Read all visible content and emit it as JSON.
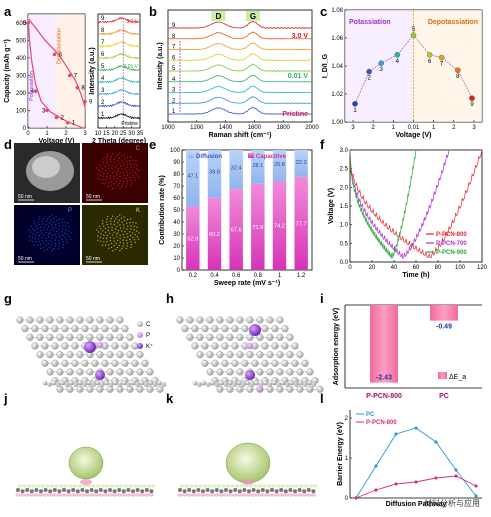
{
  "panel_letters": [
    "a",
    "b",
    "c",
    "d",
    "e",
    "f",
    "g",
    "h",
    "i",
    "j",
    "k",
    "l"
  ],
  "watermark": "材料分析与应用",
  "chart_data": [
    {
      "panel": "a",
      "type": "line",
      "xlabel": "Voltage (V)",
      "ylabel": "Capacity (mAh g⁻¹)",
      "xticks": [
        "0",
        "1",
        "2",
        "3"
      ],
      "yticks": [
        "0",
        "100",
        "200",
        "300",
        "400",
        "500",
        "600"
      ],
      "xlim": [
        0,
        3
      ],
      "ylim": [
        0,
        650
      ],
      "annotations": [
        "Potassiation",
        "Depotassiation"
      ],
      "points": [
        {
          "label": "1",
          "x": 2.1,
          "y": 30
        },
        {
          "label": "2",
          "x": 1.5,
          "y": 60
        },
        {
          "label": "3",
          "x": 1.0,
          "y": 100
        },
        {
          "label": "4",
          "x": 0.4,
          "y": 210
        },
        {
          "label": "5",
          "x": 0.01,
          "y": 600
        },
        {
          "label": "6",
          "x": 1.4,
          "y": 420
        },
        {
          "label": "7",
          "x": 2.2,
          "y": 300
        },
        {
          "label": "8",
          "x": 2.6,
          "y": 230
        },
        {
          "label": "9",
          "x": 3.0,
          "y": 150
        }
      ],
      "discharge": [
        [
          2.9,
          0
        ],
        [
          2.0,
          40
        ],
        [
          1.2,
          90
        ],
        [
          0.7,
          150
        ],
        [
          0.4,
          250
        ],
        [
          0.2,
          380
        ],
        [
          0.08,
          500
        ],
        [
          0.02,
          600
        ]
      ],
      "charge": [
        [
          0.05,
          620
        ],
        [
          0.9,
          500
        ],
        [
          1.6,
          420
        ],
        [
          2.1,
          340
        ],
        [
          2.5,
          270
        ],
        [
          2.8,
          190
        ],
        [
          3.0,
          120
        ]
      ]
    },
    {
      "panel": "a2",
      "type": "line",
      "xlabel": "2 Theta (degree)",
      "ylabel": "Intensity (a.u.)",
      "xticks": [
        "10",
        "15",
        "20",
        "25",
        "30",
        "35"
      ],
      "xlim": [
        10,
        35
      ],
      "labels": [
        "Pristine",
        "0.01 V",
        "3.0 V"
      ],
      "series_labels": [
        "1",
        "2",
        "3",
        "4",
        "5",
        "6",
        "7",
        "8",
        "9"
      ],
      "colors": [
        "#000000",
        "#1f3fd0",
        "#3aa0e0",
        "#22b8b0",
        "#2fa84f",
        "#9acd32",
        "#e8d020",
        "#f08a20",
        "#e02020"
      ]
    },
    {
      "panel": "b",
      "type": "line",
      "xlabel": "Raman shift (cm⁻¹)",
      "ylabel": "Intensity (a.u.)",
      "xticks": [
        "1000",
        "1200",
        "1400",
        "1600",
        "1800",
        "2000"
      ],
      "xlim": [
        1000,
        2000
      ],
      "peaks": [
        "D",
        "G"
      ],
      "peak_positions": [
        1350,
        1590
      ],
      "labels": [
        "3.0 V",
        "0.01 V",
        "Pristine"
      ],
      "series_labels": [
        "1",
        "2",
        "3",
        "4",
        "5",
        "6",
        "7",
        "8",
        "9"
      ],
      "colors": [
        "#3a56c0",
        "#2f8fd8",
        "#22b8c8",
        "#2fb070",
        "#7cc83a",
        "#d9d020",
        "#f0a020",
        "#e86020",
        "#d62020"
      ]
    },
    {
      "panel": "c",
      "type": "line",
      "xlabel": "Voltage (V)",
      "ylabel": "I_D/I_G",
      "xticks": [
        "3",
        "2",
        "1",
        "0.01",
        "1",
        "2",
        "3"
      ],
      "yticks": [
        "1.00",
        "1.02",
        "1.04",
        "1.06",
        "1.08"
      ],
      "ylim": [
        1.0,
        1.08
      ],
      "annotations": [
        "Potassiation",
        "Depotassiation"
      ],
      "points": [
        {
          "label": "1",
          "v": 1.013
        },
        {
          "label": "2",
          "v": 1.036
        },
        {
          "label": "3",
          "v": 1.042
        },
        {
          "label": "4",
          "v": 1.048
        },
        {
          "label": "5",
          "v": 1.062
        },
        {
          "label": "6",
          "v": 1.048
        },
        {
          "label": "7",
          "v": 1.046
        },
        {
          "label": "8",
          "v": 1.037
        },
        {
          "label": "9",
          "v": 1.017
        }
      ],
      "colors": [
        "#1f3fd0",
        "#3a56c0",
        "#3aa0e0",
        "#22b8b0",
        "#9acd32",
        "#c8c020",
        "#e8a020",
        "#f07020",
        "#e02020"
      ]
    },
    {
      "panel": "e",
      "type": "bar",
      "xlabel": "Sweep rate (mV s⁻¹)",
      "ylabel": "Contribution rate (%)",
      "categories": [
        "0.2",
        "0.4",
        "0.6",
        "0.8",
        "1",
        "1.2"
      ],
      "yticks": [
        "0",
        "10",
        "20",
        "30",
        "40",
        "50",
        "60",
        "70",
        "80",
        "90",
        "100"
      ],
      "ylim": [
        0,
        100
      ],
      "series": [
        {
          "name": "Capacitive",
          "values": [
            52.9,
            60.2,
            67.6,
            71.9,
            74.2,
            77.7
          ]
        },
        {
          "name": "Diffusion",
          "values": [
            47.1,
            39.8,
            32.4,
            28.1,
            25.8,
            22.3
          ]
        }
      ],
      "capacitive_labels": [
        "52.9",
        "60.2",
        "67.6",
        "71.9",
        "74.2",
        "77.7"
      ],
      "diffusion_labels": [
        "47.1",
        "39.8",
        "32.4",
        "28.1",
        "25.8",
        "22.3"
      ]
    },
    {
      "panel": "f",
      "type": "line",
      "xlabel": "Time (h)",
      "ylabel": "Voltage (V)",
      "xticks": [
        "0",
        "20",
        "40",
        "60",
        "80",
        "100",
        "120"
      ],
      "yticks": [
        "0.0",
        "0.5",
        "1.0",
        "1.5",
        "2.0",
        "2.5",
        "3.0"
      ],
      "xlim": [
        0,
        120
      ],
      "ylim": [
        0,
        3
      ],
      "series": [
        {
          "name": "P-PCN-800",
          "color": "#e8262a"
        },
        {
          "name": "P-PCN-700",
          "color": "#b030d0"
        },
        {
          "name": "P-PCN-900",
          "color": "#2aa83a"
        }
      ]
    },
    {
      "panel": "i",
      "type": "bar",
      "ylabel": "Adsorption energy (eV)",
      "categories": [
        "P-PCN-800",
        "PC"
      ],
      "values": [
        -2.43,
        -0.49
      ],
      "value_labels": [
        "-2.43",
        "-0.49"
      ],
      "legend": "ΔE_a"
    },
    {
      "panel": "l",
      "type": "line",
      "xlabel": "Diffusion Pathway",
      "ylabel": "Barrier Energy (eV)",
      "yticks": [
        "0",
        "1",
        "2"
      ],
      "ylim": [
        0,
        2.2
      ],
      "series": [
        {
          "name": "PC",
          "color": "#2a9ad8",
          "values": [
            0.0,
            0.8,
            1.6,
            1.75,
            1.4,
            0.7,
            0.05
          ]
        },
        {
          "name": "P-PCN-800",
          "color": "#d8306a",
          "values": [
            0.0,
            0.2,
            0.35,
            0.4,
            0.5,
            0.55,
            0.3
          ]
        }
      ]
    },
    {
      "panel": "d",
      "type": "image",
      "scale_bars": [
        "50 nm",
        "50 nm",
        "50 nm",
        "50 nm"
      ],
      "element_labels": [
        "C",
        "P",
        "K"
      ]
    },
    {
      "panel": "g",
      "type": "diagram",
      "legend": [
        "C",
        "P",
        "K⁺"
      ]
    }
  ]
}
